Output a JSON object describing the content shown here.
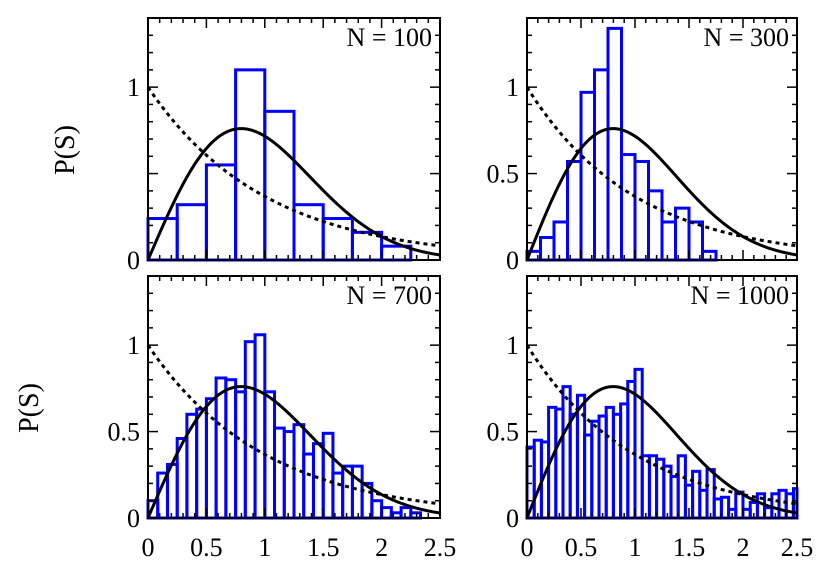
{
  "figure": {
    "ylabel": "P(S)",
    "colors": {
      "histogram": "#0000ff",
      "wigner": "#000000",
      "poisson": "#000000",
      "frame": "#000000"
    }
  },
  "chart_data": [
    {
      "type": "bar",
      "title": "N = 100",
      "xlim": [
        0,
        2.5
      ],
      "ylim": [
        0,
        1.4
      ],
      "xticks": [],
      "yticks": [
        0,
        1
      ],
      "ytick_labels": [
        "0",
        "1"
      ],
      "bin_width": 0.25,
      "bins": [
        0,
        0.25,
        0.5,
        0.75,
        1.0,
        1.25,
        1.5,
        1.75,
        2.0,
        2.25
      ],
      "values": [
        0.24,
        0.32,
        0.55,
        1.1,
        0.86,
        0.32,
        0.24,
        0.16,
        0.08,
        0
      ],
      "curves": [
        "Wigner surmise",
        "Poisson"
      ],
      "grid": false
    },
    {
      "type": "bar",
      "title": "N = 300",
      "xlim": [
        0,
        2.5
      ],
      "ylim": [
        0,
        1.4
      ],
      "xticks": [],
      "yticks": [
        0,
        0.5,
        1
      ],
      "ytick_labels": [
        "0",
        "0.5",
        "1"
      ],
      "bin_width": 0.125,
      "bins": [
        0,
        0.125,
        0.25,
        0.375,
        0.5,
        0.625,
        0.75,
        0.875,
        1.0,
        1.125,
        1.25,
        1.375,
        1.5,
        1.625,
        1.75,
        1.875,
        2.0
      ],
      "values": [
        0.05,
        0.13,
        0.22,
        0.57,
        0.97,
        1.1,
        1.34,
        0.61,
        0.57,
        0.4,
        0.22,
        0.3,
        0.22,
        0.05,
        0,
        0,
        0
      ],
      "curves": [
        "Wigner surmise",
        "Poisson"
      ],
      "grid": false
    },
    {
      "type": "bar",
      "title": "N = 700",
      "xlim": [
        0,
        2.5
      ],
      "ylim": [
        0,
        1.4
      ],
      "xticks": [
        0,
        0.5,
        1,
        1.5,
        2,
        2.5
      ],
      "xtick_labels": [
        "0",
        "0.5",
        "1",
        "1.5",
        "2",
        "2.5"
      ],
      "yticks": [
        0,
        0.5,
        1
      ],
      "ytick_labels": [
        "0",
        "0.5",
        "1"
      ],
      "bin_width": 0.0833,
      "bins": [
        0,
        0.083,
        0.167,
        0.25,
        0.333,
        0.417,
        0.5,
        0.583,
        0.667,
        0.75,
        0.833,
        0.917,
        1.0,
        1.083,
        1.167,
        1.25,
        1.333,
        1.417,
        1.5,
        1.583,
        1.667,
        1.75,
        1.833,
        1.917,
        2.0,
        2.083,
        2.167,
        2.25,
        2.333,
        2.417
      ],
      "values": [
        0.1,
        0.26,
        0.31,
        0.46,
        0.6,
        0.63,
        0.69,
        0.81,
        0.8,
        0.73,
        1.02,
        1.06,
        0.73,
        0.52,
        0.5,
        0.54,
        0.37,
        0.43,
        0.49,
        0.26,
        0.3,
        0.3,
        0.2,
        0.1,
        0.06,
        0.03,
        0.06,
        0.03,
        0,
        0
      ],
      "curves": [
        "Wigner surmise",
        "Poisson"
      ],
      "grid": false
    },
    {
      "type": "bar",
      "title": "N = 1000",
      "xlim": [
        0,
        2.5
      ],
      "ylim": [
        0,
        1.4
      ],
      "xticks": [
        0,
        0.5,
        1,
        1.5,
        2,
        2.5
      ],
      "xtick_labels": [
        "0",
        "0.5",
        "1",
        "1.5",
        "2",
        "2.5"
      ],
      "yticks": [
        0,
        0.5,
        1
      ],
      "ytick_labels": [
        "0",
        "0.5",
        "1"
      ],
      "bin_width": 0.0667,
      "bins": [
        0,
        0.067,
        0.133,
        0.2,
        0.267,
        0.333,
        0.4,
        0.467,
        0.533,
        0.6,
        0.667,
        0.733,
        0.8,
        0.867,
        0.933,
        1.0,
        1.067,
        1.133,
        1.2,
        1.267,
        1.333,
        1.4,
        1.467,
        1.533,
        1.6,
        1.667,
        1.733,
        1.8,
        1.867,
        1.933,
        2.0,
        2.067,
        2.133,
        2.2,
        2.267,
        2.333,
        2.4,
        2.467
      ],
      "values": [
        0.41,
        0.45,
        0.44,
        0.64,
        0.63,
        0.76,
        0.6,
        0.71,
        0.48,
        0.56,
        0.59,
        0.64,
        0.6,
        0.66,
        0.79,
        0.86,
        0.36,
        0.36,
        0.34,
        0.3,
        0.24,
        0.36,
        0.19,
        0.27,
        0.16,
        0.28,
        0.11,
        0.12,
        0.05,
        0.15,
        0.05,
        0.09,
        0.14,
        0.06,
        0.14,
        0.16,
        0.14,
        0.17
      ],
      "curves": [
        "Wigner surmise",
        "Poisson"
      ],
      "grid": false
    }
  ]
}
